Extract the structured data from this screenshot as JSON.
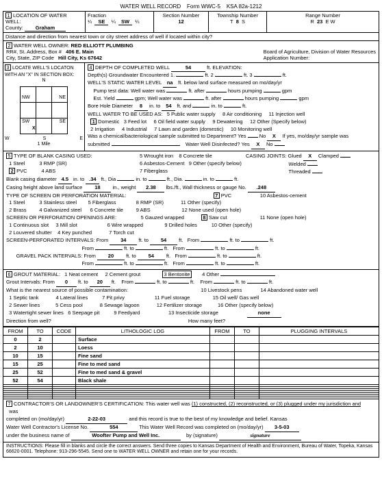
{
  "header": {
    "form_title": "WATER WELL RECORD",
    "form_no": "Form WWC-5",
    "ksa": "KSA 82a-1212"
  },
  "loc": {
    "label": "LOCATION OF WATER WELL:",
    "county_lbl": "County:",
    "county": "Graham",
    "fraction": "Fraction",
    "q1": "SE",
    "q2": "SW",
    "sec_lbl": "Section Number",
    "sec": "12",
    "twp_lbl": "Township Number",
    "twp": "8",
    "rng_lbl": "Range Number",
    "rng": "23",
    "dir": "E W",
    "dist_lbl": "Distance and direction from nearest town or city street address of well if located within city?"
  },
  "owner": {
    "label": "WATER WELL OWNER:",
    "name": "RED ELLIOTT PLUMBING",
    "addr_lbl": "RR#, St. Address, Box #",
    "addr": "406 E. Main",
    "csz_lbl": "City, State, ZIP Code",
    "csz": "Hill City, Ks  67642",
    "board": "Board of Agriculture, Division of Water Resources",
    "app": "Application Number:"
  },
  "sec3": {
    "lbl": "LOCATE WELL'S LOCATON WITH AN \"X\" IN SECTION BOX:",
    "n": "N",
    "s": "S",
    "e": "E",
    "w": "W",
    "nw": "NW",
    "ne": "NE",
    "sw": "SW",
    "se": "SE",
    "mile": "1 Mile"
  },
  "sec4": {
    "depth_lbl": "DEPTH OF COMPLETED WELL",
    "depth": "54",
    "elev": "ft. ELEVATION:",
    "gw": "Depth(s) Groundwater Encountered    1.",
    "ft2": "ft.  2",
    "ft3": "ft.  3",
    "swl_lbl": "WELL'S STATIC WATER LEVEL",
    "swl": "na",
    "swl_suffix": "ft. below land surface measured on mo/day/yr",
    "pump": "Pump test data:  Well water was",
    "after": "ft. after",
    "hours": "hours pumping",
    "gpm": "gpm",
    "est": "Est. Yield",
    "gpm2": "gpm;   Well water was",
    "bore_lbl": "Bore Hole Diameter",
    "bore": "8",
    "in_to": "in. to",
    "to": "54",
    "ft_and": "ft. and",
    "in_to2": "in. to",
    "ft2b": "ft.",
    "use_lbl": "WELL WATER TO BE USED AS:",
    "use_1": "Domestic",
    "use_3": "3  Feed lot",
    "use_5": "5  Public water supply",
    "use_6": "6  Oil field water supply",
    "use_8": "8  Air conditioning",
    "use_9": "9  Dewatering",
    "use_11": "11  Injection well",
    "use_12": "12  Other (Specify below)",
    "use_2": "2   Irrigation",
    "use_4": "4  Industrial",
    "use_7": "7  Lawn and garden (domestic)",
    "use_10": "10  Monitoring well",
    "chem": "Was a chemical/bacteriological sample submitted to Department?  Yes",
    "no": "No",
    "nox": "X",
    "ifyes": "If yes, mo/day/yr sample was",
    "submitted": "submitted",
    "disinfect": "Water Well Disinfected?  Yes",
    "disx": "X",
    "no2": "No"
  },
  "sec5": {
    "title": "TYPE OF BLANK CASING USED:",
    "c1": "1   Steel",
    "c3": "3   RMP (SR)",
    "c5": "5   Wrought iron",
    "c8": "8   Concrete tile",
    "c2": "PVC",
    "c4": "4   ABS",
    "c7": "7   Fiberglass",
    "c6": "6   Asbestos-Cement",
    "c9": "9   Other (specify below)",
    "cj": "CASING JOINTS:  Glued",
    "cjx": "X",
    "clamp": "Clamped",
    "weld": "Welded",
    "thread": "Threaded",
    "bcd_lbl": "Blank casing diameter",
    "bcd": "4.5",
    "into": "in. to",
    "bcd2": ".34",
    "dia": "ft., Dia",
    "into2": "in. to",
    "ft": "ft., Dia.",
    "into3": "in. to",
    "ft2": "ft.",
    "ch_lbl": "Casing height above land surface",
    "ch": "18",
    "wt_lbl": "in., weight",
    "wt": "2.38",
    "lbs": "lbs./ft., Wall thickness or gauge No.",
    "gauge": ".248",
    "screen_title": "TYPE OF SCREEN OR PERFORATION MATERIAL:",
    "s1": "1   Steel",
    "s3": "3  Stainless steel",
    "s5": "5   Fiberglass",
    "s7": "PVC",
    "s8": "8   RMP (SR)",
    "s10": "10  Asbestos-cement",
    "s11": "11  Other (specify)",
    "s2": "2   Brass",
    "s4": "4  Galvanized steel",
    "s6": "6   Concrete tile",
    "s9": "9   ABS",
    "s12": "12  None used (open hole)",
    "open_title": "SCREEN OR PERFORATION OPENINGS ARE:",
    "o1": "1   Continuous slot",
    "o3": "3   Mill slot",
    "o5": "5   Gauzed wrapped",
    "o6": "6   Wire wrapped",
    "o8": "Saw cut",
    "o9": "9   Drilled holes",
    "o11": "11  None (open hole)",
    "o2": "2   Louvered shutter",
    "o4": "4   Key punched",
    "o7": "7   Torch cut",
    "o10": "10  Other (specify)",
    "spi_lbl": "SCREEN-PERFORATED INTERVALS:    From",
    "spi1": "34",
    "ftto": "ft. to",
    "spi2": "54",
    "from2": "From",
    "gpi_lbl": "GRAVEL PACK INTERVALS:      From",
    "gpi1": "20",
    "gpi2": "54"
  },
  "sec6": {
    "title": "GROUT MATERIAL:",
    "g1": "1  Neat cement",
    "g2": "2   Cement grout",
    "g3": "3 Bentonite",
    "g4": "4  Other",
    "gi_lbl": "Grout Intervals:      From",
    "gi1": "0",
    "gi2": "20",
    "ftto": "ft. to",
    "from": "From",
    "contam": "What is the nearest source of possible contamination:",
    "c1": "1   Septic tank",
    "c4": "4   Lateral lines",
    "c7": "7   Pit privy",
    "c10": "10   Livestock pens",
    "c14": "14   Abandoned water well",
    "c2": "2   Sewer lines",
    "c5": "5   Cess pool",
    "c8": "8   Sewage lagoon",
    "c11": "11   Fuel storage",
    "c15": "15   Oil well/ Gas well",
    "c3": "3   Watertight sewer lines",
    "c6": "6   Seepage pit",
    "c9": "9   Feedyard",
    "c12": "12   Fertilizer storage",
    "c16": "16   Other (specify below)",
    "c13": "13   Insecticide storage",
    "none": "none",
    "dir": "Direction from well?",
    "feet": "How many feet?"
  },
  "log": {
    "headers": [
      "FROM",
      "TO",
      "CODE",
      "LITHOLOGIC LOG",
      "FROM",
      "TO",
      "PLUGGING INTERVALS"
    ],
    "rows": [
      [
        "0",
        "2",
        "",
        "Surface",
        "",
        "",
        ""
      ],
      [
        "2",
        "10",
        "",
        "Loess",
        "",
        "",
        ""
      ],
      [
        "10",
        "15",
        "",
        "Fine sand",
        "",
        "",
        ""
      ],
      [
        "15",
        "25",
        "",
        "Fine to med sand",
        "",
        "",
        ""
      ],
      [
        "25",
        "52",
        "",
        "Fine to med sand & gravel",
        "",
        "",
        ""
      ],
      [
        "52",
        "54",
        "",
        "Black shale",
        "",
        "",
        ""
      ],
      [
        "",
        "",
        "",
        "",
        "",
        "",
        ""
      ],
      [
        "",
        "",
        "",
        "",
        "",
        "",
        ""
      ],
      [
        "",
        "",
        "",
        "",
        "",
        "",
        ""
      ],
      [
        "",
        "",
        "",
        "",
        "",
        "",
        ""
      ],
      [
        "",
        "",
        "",
        "",
        "",
        "",
        ""
      ],
      [
        "",
        "",
        "",
        "",
        "",
        "",
        ""
      ],
      [
        "",
        "",
        "",
        "",
        "",
        "",
        ""
      ]
    ]
  },
  "sec7": {
    "cert": "CONTRACTOR'S OR LANDOWNER'S CERTIFICATION:  This water well was",
    "opts": "(1) constructed, (2) reconstructed, or (3) plugged under my jurisdiction and",
    "was": "was",
    "completed": "completed on (mo/day/yr)",
    "date": "2-22-03",
    "record": "and this record is true to the best of my knowledge and belief.  Kansas",
    "lic_lbl": "Water Well Contractor's License No.",
    "lic": "554",
    "rec2": "This Water Well Record was completed on (mo/day/yr)",
    "date2": "3-5-03",
    "under": "under the business name of",
    "biz": "Woofter Pump and Well Inc.",
    "by": "by (signature)"
  },
  "inst": "INSTRUCTIONS:  Please fill in blanks and circle the correct answers.  Send three copies to Kansas Department of Health and Environment, Bureau of Water, Topeka, Kansas 66620-0001.  Telephone: 913-296-5545.  Send one to WATER WELL OWNER and retain one for your records."
}
